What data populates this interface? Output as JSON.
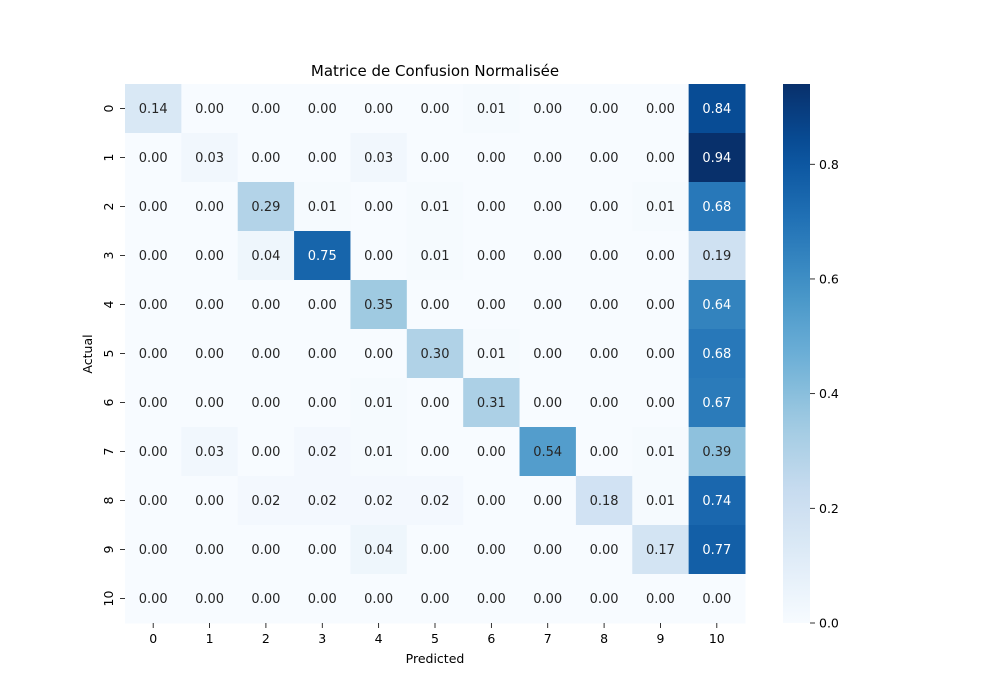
{
  "chart_data": {
    "type": "heatmap",
    "title": "Matrice de Confusion Normalisée",
    "xlabel": "Predicted",
    "ylabel": "Actual",
    "x_categories": [
      "0",
      "1",
      "2",
      "3",
      "4",
      "5",
      "6",
      "7",
      "8",
      "9",
      "10"
    ],
    "y_categories": [
      "0",
      "1",
      "2",
      "3",
      "4",
      "5",
      "6",
      "7",
      "8",
      "9",
      "10"
    ],
    "values": [
      [
        0.14,
        0.0,
        0.0,
        0.0,
        0.0,
        0.0,
        0.01,
        0.0,
        0.0,
        0.0,
        0.84
      ],
      [
        0.0,
        0.03,
        0.0,
        0.0,
        0.03,
        0.0,
        0.0,
        0.0,
        0.0,
        0.0,
        0.94
      ],
      [
        0.0,
        0.0,
        0.29,
        0.01,
        0.0,
        0.01,
        0.0,
        0.0,
        0.0,
        0.01,
        0.68
      ],
      [
        0.0,
        0.0,
        0.04,
        0.75,
        0.0,
        0.01,
        0.0,
        0.0,
        0.0,
        0.0,
        0.19
      ],
      [
        0.0,
        0.0,
        0.0,
        0.0,
        0.35,
        0.0,
        0.0,
        0.0,
        0.0,
        0.0,
        0.64
      ],
      [
        0.0,
        0.0,
        0.0,
        0.0,
        0.0,
        0.3,
        0.01,
        0.0,
        0.0,
        0.0,
        0.68
      ],
      [
        0.0,
        0.0,
        0.0,
        0.0,
        0.01,
        0.0,
        0.31,
        0.0,
        0.0,
        0.0,
        0.67
      ],
      [
        0.0,
        0.03,
        0.0,
        0.02,
        0.01,
        0.0,
        0.0,
        0.54,
        0.0,
        0.01,
        0.39
      ],
      [
        0.0,
        0.0,
        0.02,
        0.02,
        0.02,
        0.02,
        0.0,
        0.0,
        0.18,
        0.01,
        0.74
      ],
      [
        0.0,
        0.0,
        0.0,
        0.0,
        0.04,
        0.0,
        0.0,
        0.0,
        0.0,
        0.17,
        0.77
      ],
      [
        0.0,
        0.0,
        0.0,
        0.0,
        0.0,
        0.0,
        0.0,
        0.0,
        0.0,
        0.0,
        0.0
      ]
    ],
    "colormap": "Blues",
    "colorbar": {
      "range": [
        0.0,
        0.94
      ],
      "ticks": [
        0.0,
        0.2,
        0.4,
        0.6,
        0.8
      ],
      "tick_labels": [
        "0.0",
        "0.2",
        "0.4",
        "0.6",
        "0.8"
      ]
    },
    "grid": false
  }
}
